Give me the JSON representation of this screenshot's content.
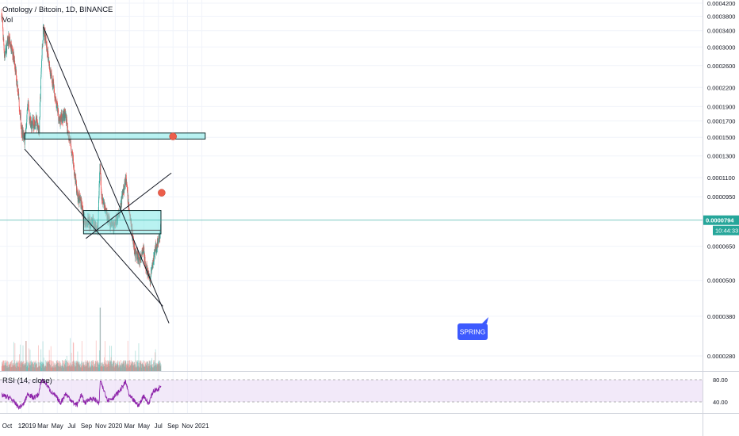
{
  "header": {
    "title": "Ontology / Bitcoin, 1D, BINANCE",
    "volume_label": "Vol"
  },
  "rsi": {
    "label": "RSI (14, close)",
    "levels": [
      "80.00",
      "40.00"
    ]
  },
  "price_scale": {
    "ticks": [
      "0.0004200",
      "0.0003800",
      "0.0003400",
      "0.0003000",
      "0.0002600",
      "0.0002200",
      "0.0001900",
      "0.0001700",
      "0.0001500",
      "0.0001300",
      "0.0001100",
      "0.0000950",
      "0.0000650",
      "0.0000500",
      "0.0000380",
      "0.0000280"
    ],
    "current_price": "0.0000794",
    "countdown": "10:44:33"
  },
  "time_axis": {
    "labels": [
      "Oct",
      "12",
      "2019",
      "Mar",
      "May",
      "Jul",
      "Sep",
      "Nov",
      "2020",
      "Mar",
      "May",
      "Jul",
      "Sep",
      "Nov",
      "2021"
    ]
  },
  "annotations": {
    "spring_label": "SPRING"
  },
  "colors": {
    "up": "#26a69a",
    "down": "#ef5350",
    "zone_fill": "#7fe7e6",
    "rsi_line": "#8e24aa",
    "rsi_band": "#ede0f7",
    "current_price_badge": "#26a69a",
    "spring_badge": "#3d5afe",
    "target_dot": "#ec5e4a"
  },
  "chart_data": {
    "type": "candlestick",
    "symbol": "ONT/BTC",
    "timeframe": "1D",
    "exchange": "BINANCE",
    "y_scale": "log",
    "ylim": [
      2.4e-05,
      0.00043
    ],
    "close_path": [
      {
        "date": "2018-09-08",
        "close": 0.00039
      },
      {
        "date": "2018-09-20",
        "close": 0.00028
      },
      {
        "date": "2018-10-08",
        "close": 0.00032
      },
      {
        "date": "2018-10-28",
        "close": 0.00028
      },
      {
        "date": "2018-11-15",
        "close": 0.00022
      },
      {
        "date": "2018-12-01",
        "close": 0.00016
      },
      {
        "date": "2018-12-14",
        "close": 0.000145
      },
      {
        "date": "2018-12-28",
        "close": 0.00019
      },
      {
        "date": "2019-01-10",
        "close": 0.000165
      },
      {
        "date": "2019-01-30",
        "close": 0.00017
      },
      {
        "date": "2019-02-14",
        "close": 0.00016
      },
      {
        "date": "2019-02-24",
        "close": 0.00027
      },
      {
        "date": "2019-03-03",
        "close": 0.00035
      },
      {
        "date": "2019-03-15",
        "close": 0.00031
      },
      {
        "date": "2019-04-01",
        "close": 0.00025
      },
      {
        "date": "2019-04-20",
        "close": 0.00021
      },
      {
        "date": "2019-05-10",
        "close": 0.00017
      },
      {
        "date": "2019-06-01",
        "close": 0.00018
      },
      {
        "date": "2019-06-20",
        "close": 0.00015
      },
      {
        "date": "2019-07-01",
        "close": 0.000135
      },
      {
        "date": "2019-07-10",
        "close": 0.00012
      },
      {
        "date": "2019-07-25",
        "close": 9.5e-05
      },
      {
        "date": "2019-08-10",
        "close": 9.2e-05
      },
      {
        "date": "2019-08-20",
        "close": 8e-05
      },
      {
        "date": "2019-09-05",
        "close": 7.8e-05
      },
      {
        "date": "2019-10-01",
        "close": 7.8e-05
      },
      {
        "date": "2019-10-20",
        "close": 7.6e-05
      },
      {
        "date": "2019-10-28",
        "close": 0.00012
      },
      {
        "date": "2019-11-05",
        "close": 9.7e-05
      },
      {
        "date": "2019-11-20",
        "close": 8.7e-05
      },
      {
        "date": "2019-12-10",
        "close": 7.7e-05
      },
      {
        "date": "2019-12-28",
        "close": 7.5e-05
      },
      {
        "date": "2020-01-20",
        "close": 8.6e-05
      },
      {
        "date": "2020-02-14",
        "close": 0.00011
      },
      {
        "date": "2020-02-25",
        "close": 9.1e-05
      },
      {
        "date": "2020-03-12",
        "close": 7.2e-05
      },
      {
        "date": "2020-03-25",
        "close": 6.2e-05
      },
      {
        "date": "2020-04-15",
        "close": 5.8e-05
      },
      {
        "date": "2020-04-29",
        "close": 6.3e-05
      },
      {
        "date": "2020-05-15",
        "close": 5.3e-05
      },
      {
        "date": "2020-05-28",
        "close": 5e-05
      },
      {
        "date": "2020-06-12",
        "close": 6e-05
      },
      {
        "date": "2020-06-28",
        "close": 6.7e-05
      },
      {
        "date": "2020-07-08",
        "close": 7e-05
      },
      {
        "date": "2020-07-12",
        "close": 7.94e-05
      }
    ],
    "zones": [
      {
        "from": "2018-12-14",
        "to": "2021-01-15",
        "low": 0.000148,
        "high": 0.000155
      },
      {
        "from": "2019-08-20",
        "to": "2020-07-12",
        "low": 7.15e-05,
        "high": 8.55e-05
      }
    ],
    "trendlines": [
      {
        "from": {
          "date": "2019-03-03",
          "price": 0.00035
        },
        "to": {
          "date": "2020-08-15",
          "price": 3.6e-05
        }
      },
      {
        "from": {
          "date": "2018-12-14",
          "price": 0.000137
        },
        "to": {
          "date": "2020-07-20",
          "price": 4.1e-05
        }
      },
      {
        "from": {
          "date": "2019-08-30",
          "price": 6.9e-05
        },
        "to": {
          "date": "2020-08-25",
          "price": 0.000114
        }
      }
    ],
    "targets": [
      {
        "date": "2020-09-01",
        "price": 0.000151
      },
      {
        "date": "2020-07-15",
        "price": 9.8e-05
      }
    ],
    "rsi_path": [
      {
        "date": "2018-09-08",
        "rsi": 52
      },
      {
        "date": "2018-10-15",
        "rsi": 47
      },
      {
        "date": "2018-11-20",
        "rsi": 30
      },
      {
        "date": "2018-12-10",
        "rsi": 36
      },
      {
        "date": "2018-12-28",
        "rsi": 55
      },
      {
        "date": "2019-01-20",
        "rsi": 47
      },
      {
        "date": "2019-02-10",
        "rsi": 53
      },
      {
        "date": "2019-02-25",
        "rsi": 80
      },
      {
        "date": "2019-03-15",
        "rsi": 73
      },
      {
        "date": "2019-04-05",
        "rsi": 58
      },
      {
        "date": "2019-04-25",
        "rsi": 50
      },
      {
        "date": "2019-05-15",
        "rsi": 38
      },
      {
        "date": "2019-06-05",
        "rsi": 55
      },
      {
        "date": "2019-06-25",
        "rsi": 45
      },
      {
        "date": "2019-07-10",
        "rsi": 37
      },
      {
        "date": "2019-07-25",
        "rsi": 35
      },
      {
        "date": "2019-08-10",
        "rsi": 53
      },
      {
        "date": "2019-08-25",
        "rsi": 38
      },
      {
        "date": "2019-09-15",
        "rsi": 46
      },
      {
        "date": "2019-10-10",
        "rsi": 44
      },
      {
        "date": "2019-10-25",
        "rsi": 37
      },
      {
        "date": "2019-10-29",
        "rsi": 78
      },
      {
        "date": "2019-11-10",
        "rsi": 65
      },
      {
        "date": "2019-12-01",
        "rsi": 43
      },
      {
        "date": "2019-12-25",
        "rsi": 48
      },
      {
        "date": "2020-01-20",
        "rsi": 60
      },
      {
        "date": "2020-02-14",
        "rsi": 76
      },
      {
        "date": "2020-03-01",
        "rsi": 50
      },
      {
        "date": "2020-03-20",
        "rsi": 42
      },
      {
        "date": "2020-04-10",
        "rsi": 33
      },
      {
        "date": "2020-04-30",
        "rsi": 52
      },
      {
        "date": "2020-05-20",
        "rsi": 36
      },
      {
        "date": "2020-06-10",
        "rsi": 60
      },
      {
        "date": "2020-06-30",
        "rsi": 62
      },
      {
        "date": "2020-07-12",
        "rsi": 72
      }
    ]
  }
}
